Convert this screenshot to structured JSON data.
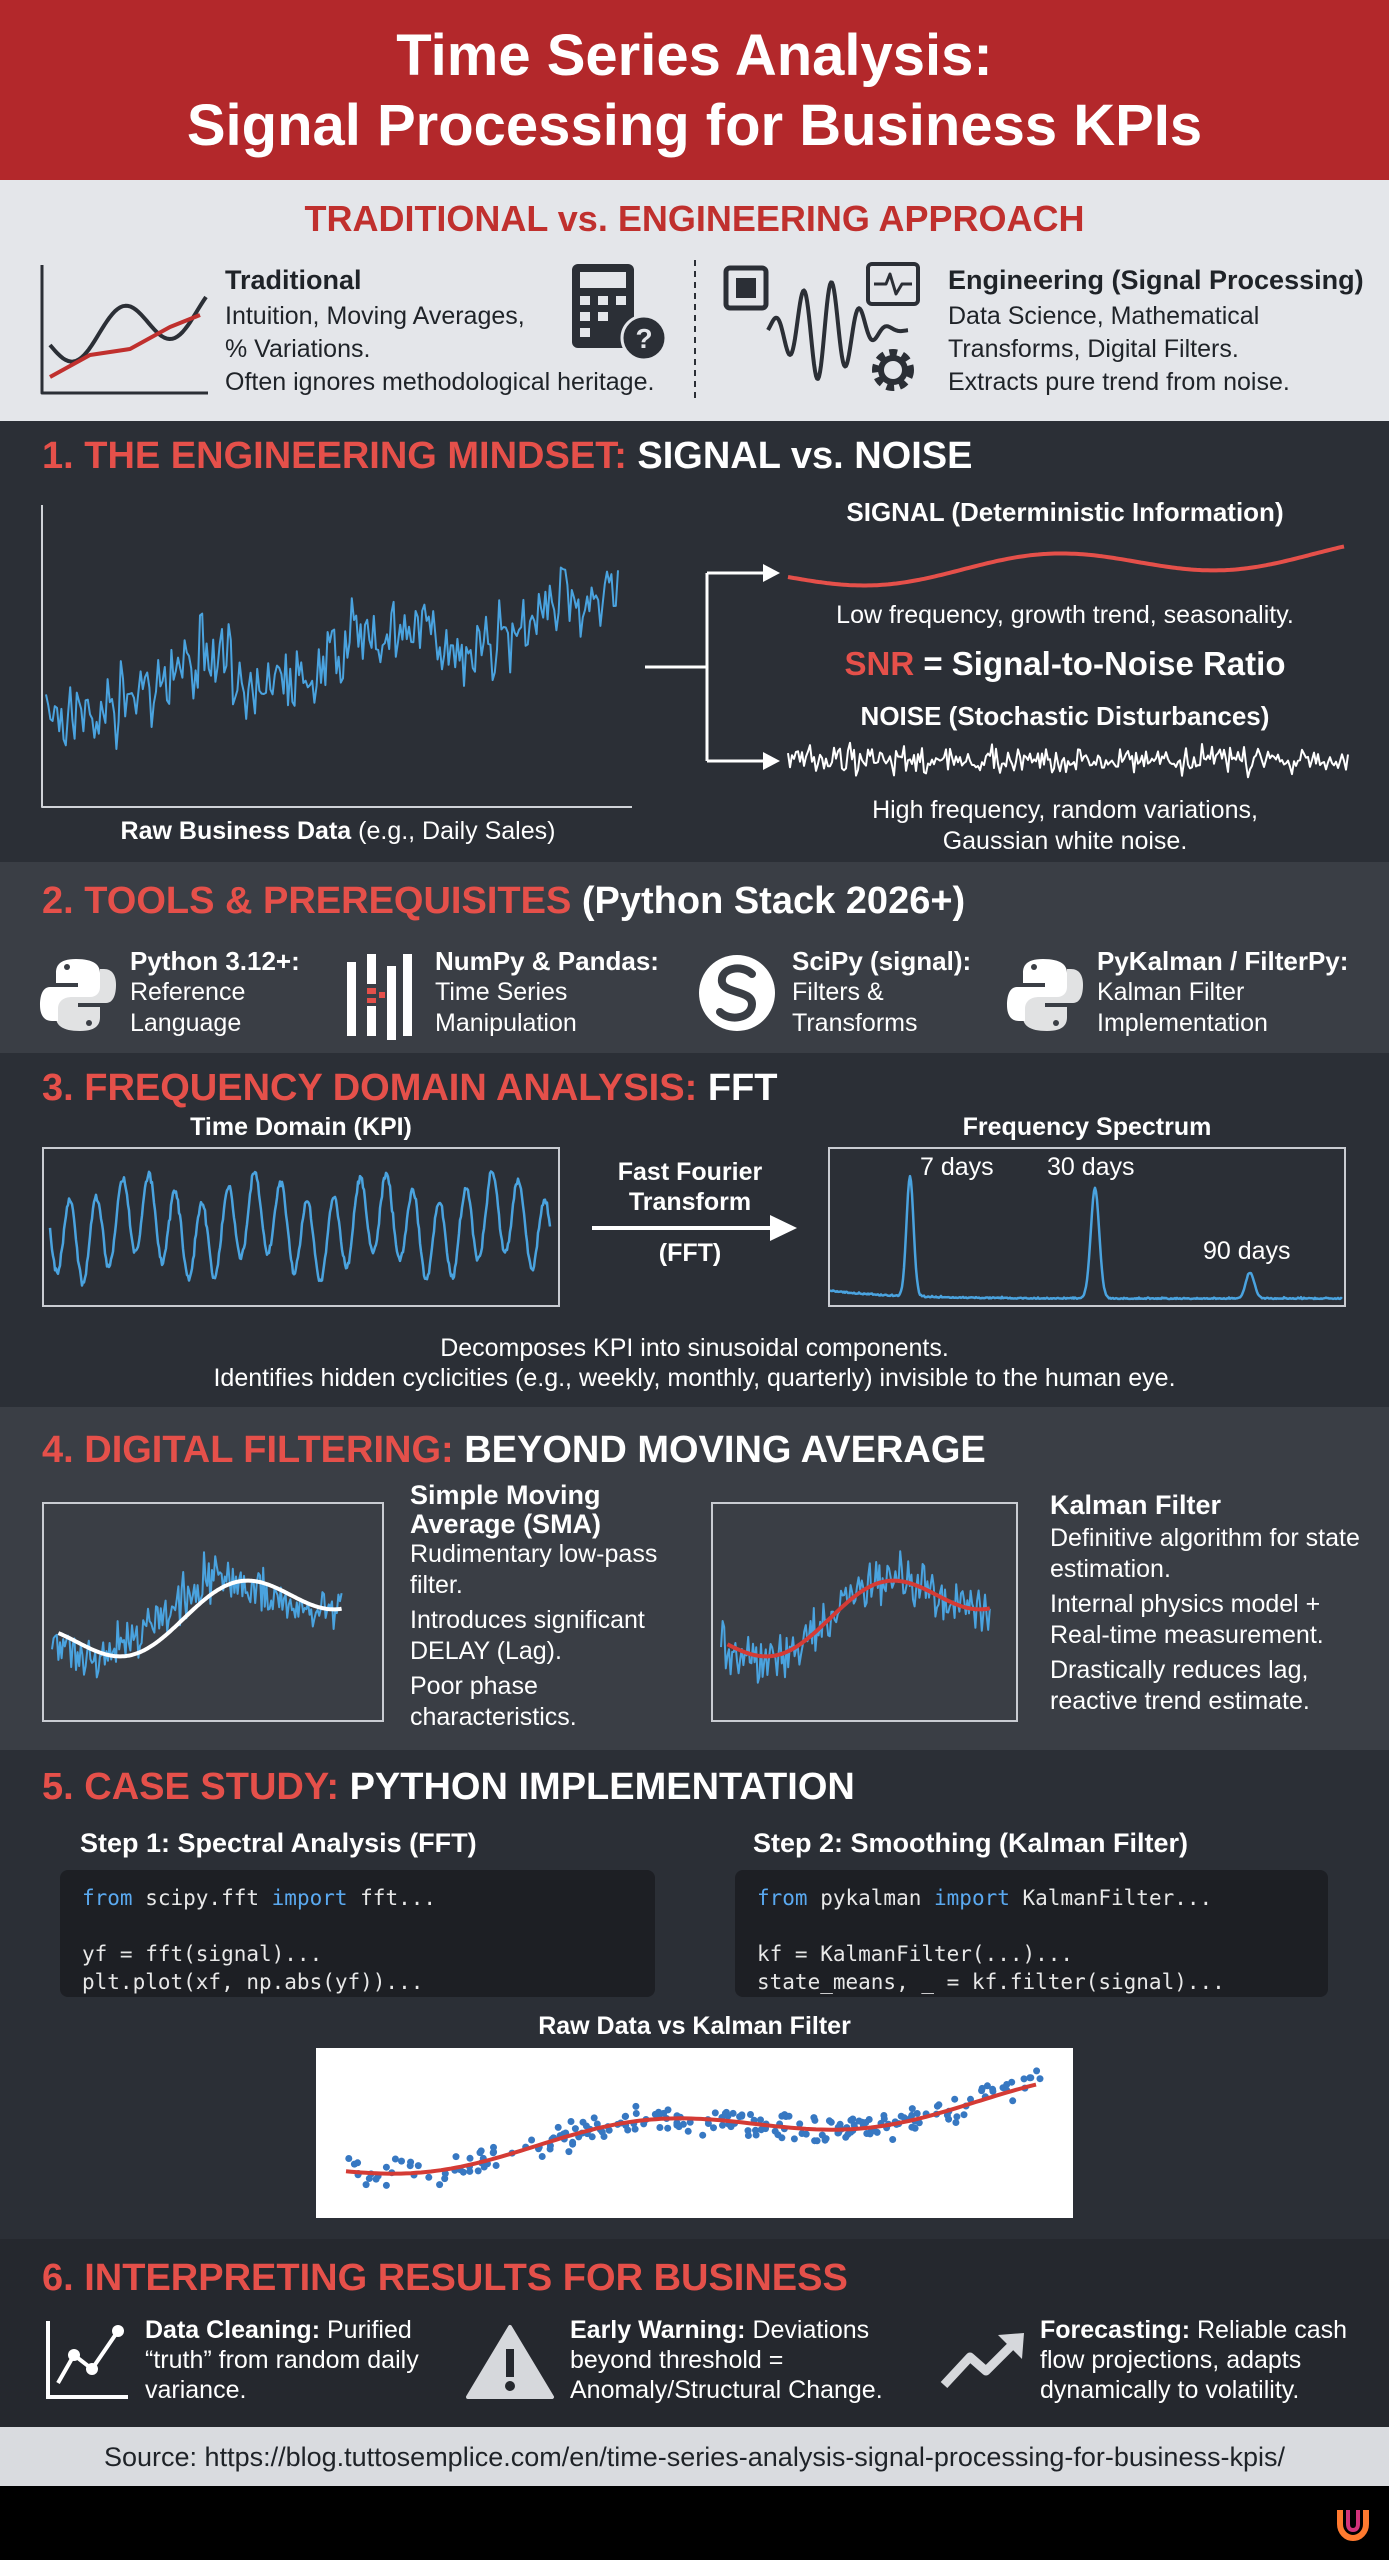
{
  "header": {
    "title_line1": "Time Series Analysis:",
    "title_line2": "Signal Processing for Business KPIs"
  },
  "comparison": {
    "heading": "TRADITIONAL vs. ENGINEERING APPROACH",
    "traditional": {
      "title": "Traditional",
      "lines": [
        "Intuition, Moving Averages,",
        "% Variations.",
        "Often ignores methodological heritage."
      ]
    },
    "engineering": {
      "title": "Engineering (Signal Processing)",
      "lines": [
        "Data Science, Mathematical",
        "Transforms, Digital Filters.",
        "Extracts pure trend from noise."
      ]
    }
  },
  "section1": {
    "heading_accent": "1. THE ENGINEERING MINDSET:",
    "heading_rest": "SIGNAL vs. NOISE",
    "raw_label_bold": "Raw Business Data",
    "raw_label_rest": "(e.g., Daily Sales)",
    "signal_title": "SIGNAL (Deterministic Information)",
    "signal_desc": "Low frequency, growth trend, seasonality.",
    "snr_accent": "SNR",
    "snr_rest": "= Signal-to-Noise Ratio",
    "noise_title": "NOISE (Stochastic Disturbances)",
    "noise_desc_line1": "High frequency, random variations,",
    "noise_desc_line2": "Gaussian white noise."
  },
  "section2": {
    "heading_accent": "2. TOOLS & PREREQUISITES",
    "heading_rest": "(Python Stack 2026+)",
    "tools": [
      {
        "name": "Python 3.12+:",
        "desc": [
          "Reference",
          "Language"
        ]
      },
      {
        "name": "NumPy & Pandas:",
        "desc": [
          "Time Series",
          "Manipulation"
        ]
      },
      {
        "name": "SciPy (signal):",
        "desc": [
          "Filters &",
          "Transforms"
        ]
      },
      {
        "name": "PyKalman / FilterPy:",
        "desc": [
          "Kalman Filter",
          "Implementation"
        ]
      }
    ]
  },
  "section3": {
    "heading_accent": "3. FREQUENCY DOMAIN ANALYSIS:",
    "heading_rest": "FFT",
    "time_domain": "Time Domain (KPI)",
    "fft_line1": "Fast Fourier",
    "fft_line2": "Transform",
    "fft_abbr": "(FFT)",
    "spectrum_title": "Frequency Spectrum",
    "peaks": [
      "7 days",
      "30 days",
      "90 days"
    ],
    "desc_line1": "Decomposes KPI into sinusoidal components.",
    "desc_line2": "Identifies hidden cyclicities (e.g., weekly, monthly, quarterly) invisible to the human eye."
  },
  "section4": {
    "heading_accent": "4. DIGITAL FILTERING:",
    "heading_rest": "BEYOND MOVING AVERAGE",
    "sma": {
      "title": "Simple Moving Average (SMA)",
      "points": [
        "Rudimentary low-pass filter.",
        "Introduces significant DELAY (Lag).",
        "Poor phase characteristics."
      ]
    },
    "kalman": {
      "title": "Kalman Filter",
      "points": [
        "Definitive algorithm for state estimation.",
        "Internal physics model + Real-time measurement.",
        "Drastically reduces lag, reactive trend estimate."
      ]
    }
  },
  "section5": {
    "heading_accent": "5. CASE STUDY:",
    "heading_rest": "PYTHON IMPLEMENTATION",
    "steps": [
      {
        "title": "Step 1: Spectral Analysis (FFT)",
        "code": [
          [
            "from",
            " scipy.fft ",
            "import",
            " fft..."
          ],
          [
            "yf = fft(signal)..."
          ],
          [
            "plt.plot(xf, np.abs(yf))..."
          ]
        ]
      },
      {
        "title": "Step 2: Smoothing (Kalman Filter)",
        "code": [
          [
            "from",
            " pykalman ",
            "import",
            " KalmanFilter..."
          ],
          [
            "kf = KalmanFilter(...)..."
          ],
          [
            "state_means, _ = kf.filter(signal)..."
          ]
        ]
      }
    ],
    "chart_title": "Raw Data vs Kalman Filter"
  },
  "section6": {
    "heading": "6. INTERPRETING RESULTS FOR BUSINESS",
    "items": [
      {
        "lead": "Data Cleaning:",
        "text": "Purified “truth” from random daily variance."
      },
      {
        "lead": "Early Warning:",
        "text": "Deviations beyond threshold = Anomaly/Structural Change."
      },
      {
        "lead": "Forecasting:",
        "text": "Reliable cash flow projections, adapts dynamically to volatility."
      }
    ]
  },
  "source": "Source: https://blog.tuttosemplice.com/en/time-series-analysis-signal-processing-for-business-kpis/"
}
